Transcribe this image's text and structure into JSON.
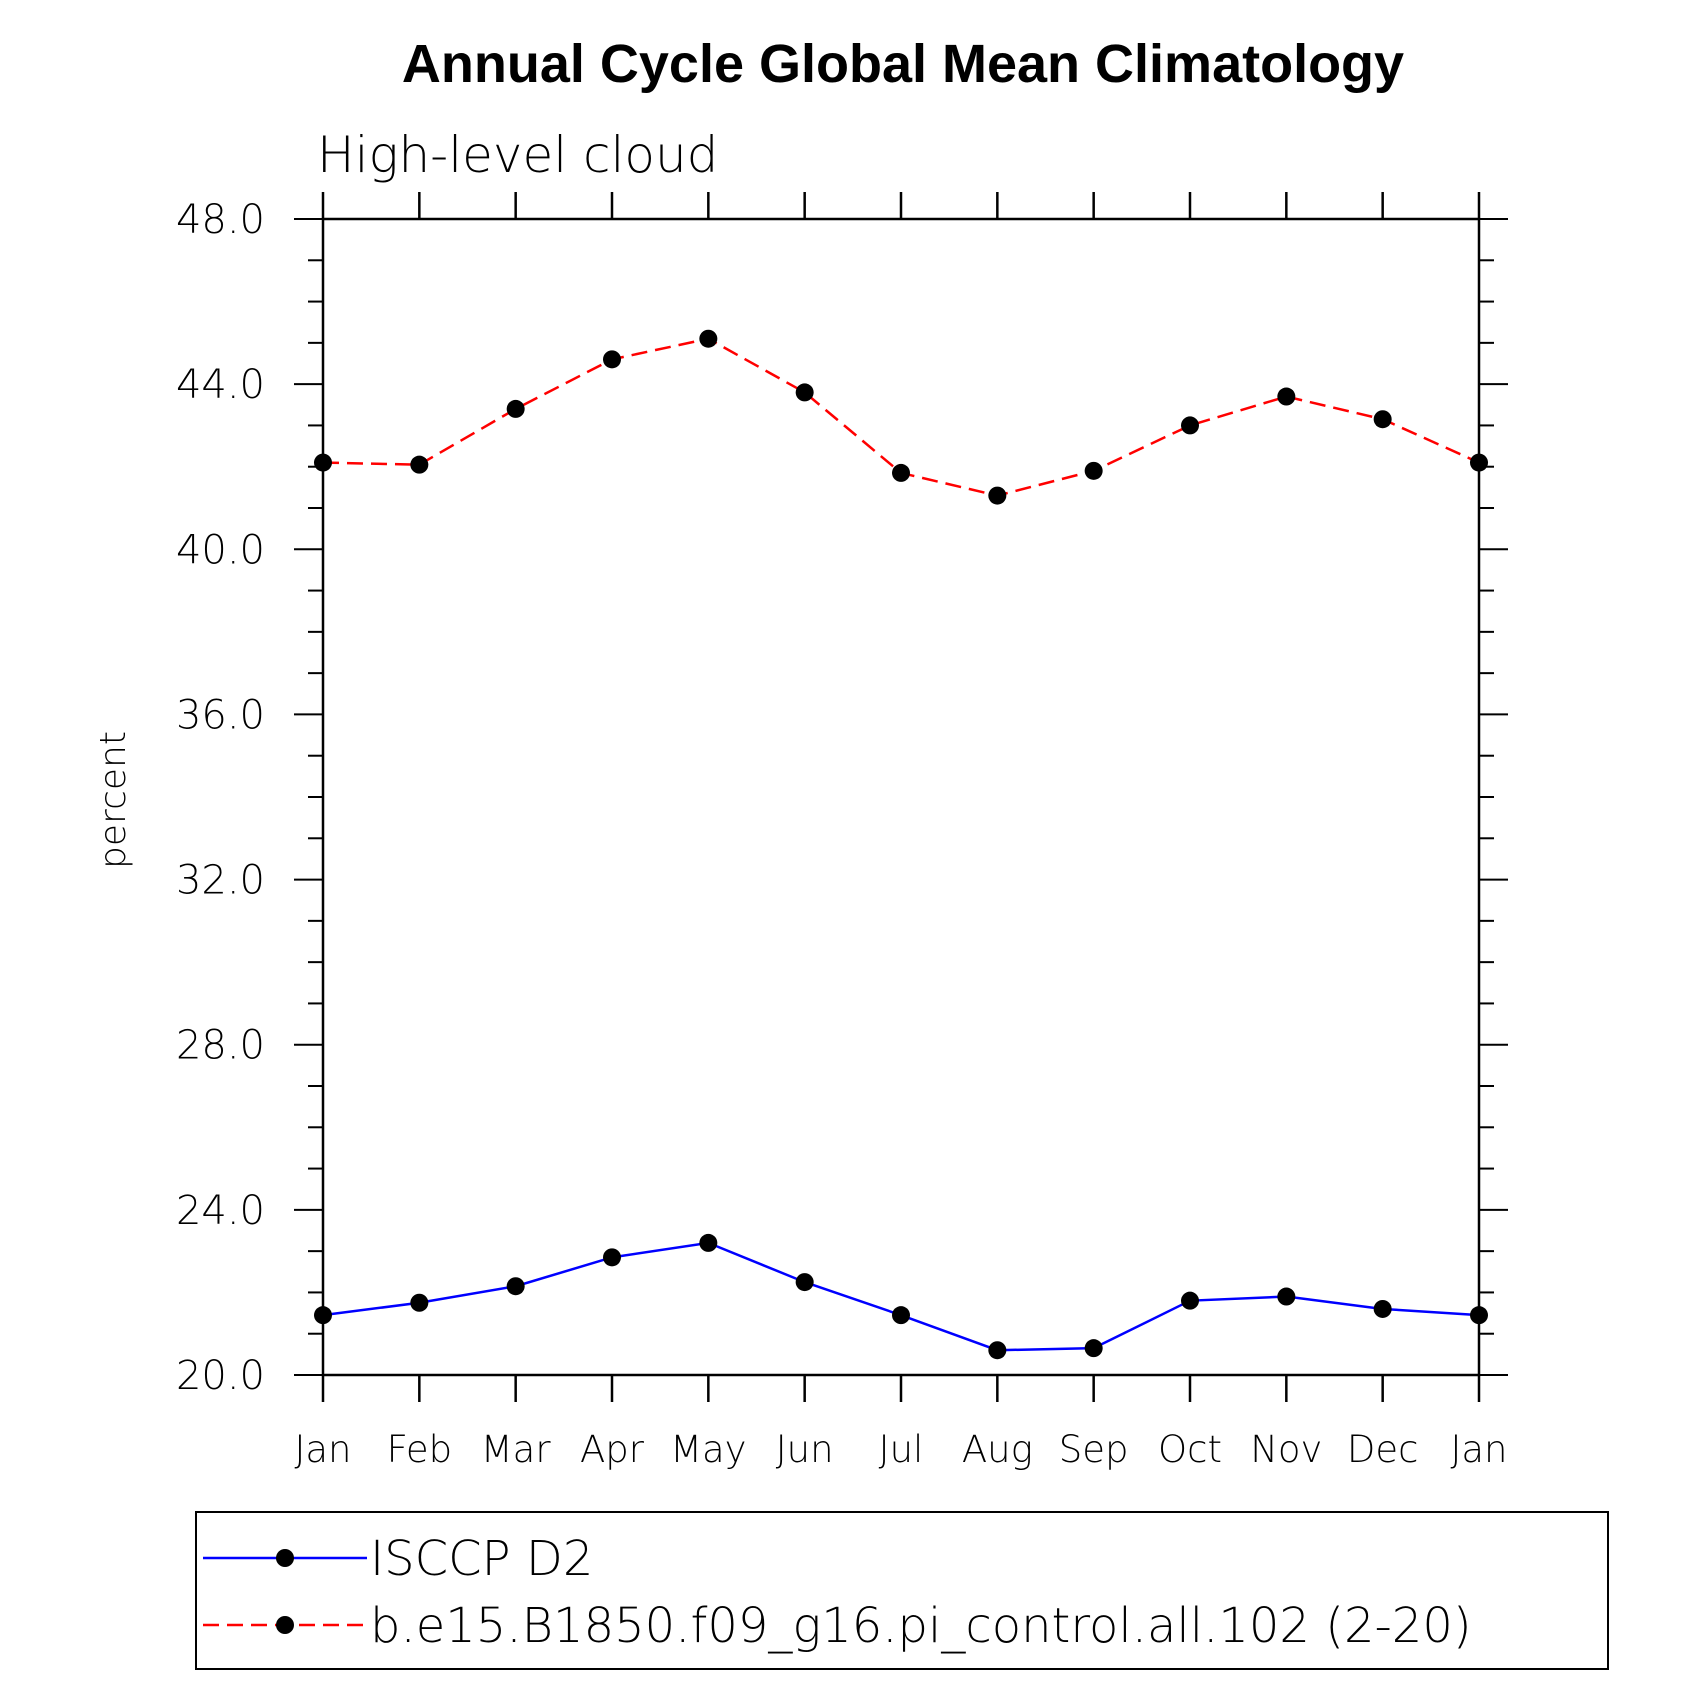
{
  "chart_data": {
    "type": "line",
    "title": "Annual Cycle Global Mean Climatology",
    "subtitle": "High-level cloud",
    "xlabel": "",
    "ylabel": "percent",
    "categories": [
      "Jan",
      "Feb",
      "Mar",
      "Apr",
      "May",
      "Jun",
      "Jul",
      "Aug",
      "Sep",
      "Oct",
      "Nov",
      "Dec",
      "Jan"
    ],
    "ylim": [
      20.0,
      48.0
    ],
    "yticks": [
      "20.0",
      "24.0",
      "28.0",
      "32.0",
      "36.0",
      "40.0",
      "44.0",
      "48.0"
    ],
    "ytick_values": [
      20,
      24,
      28,
      32,
      36,
      40,
      44,
      48
    ],
    "minor_step": 1,
    "series": [
      {
        "name": "ISCCP D2",
        "color": "#0000ff",
        "dash": "solid",
        "marker": "filled-circle",
        "values": [
          21.45,
          21.75,
          22.15,
          22.85,
          23.2,
          22.25,
          21.45,
          20.6,
          20.65,
          21.8,
          21.9,
          21.6,
          21.45
        ]
      },
      {
        "name": "b.e15.B1850.f09_g16.pi_control.all.102 (2-20)",
        "color": "#ff0000",
        "dash": "dashed",
        "marker": "filled-circle",
        "values": [
          42.1,
          42.05,
          43.4,
          44.6,
          45.1,
          43.8,
          41.85,
          41.3,
          41.9,
          43.0,
          43.7,
          43.15,
          42.1
        ]
      }
    ],
    "grid": false,
    "legend": "bottom"
  }
}
